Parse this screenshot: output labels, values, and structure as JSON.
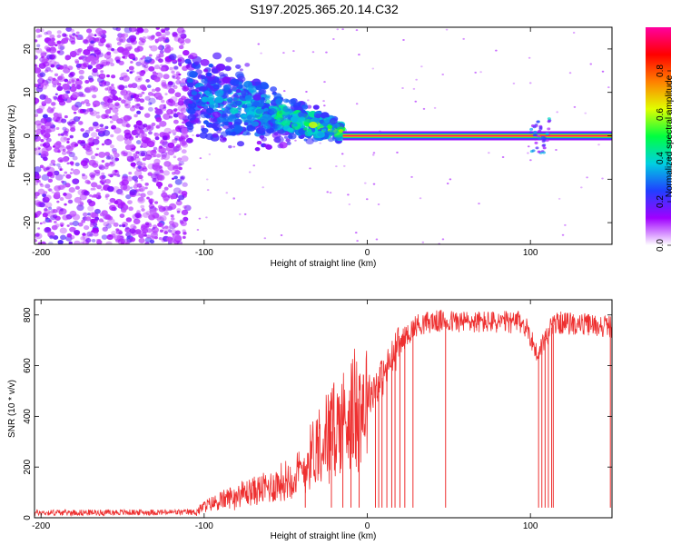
{
  "title": "S197.2025.365.20.14.C32",
  "chart_data": [
    {
      "type": "heatmap",
      "xlabel": "Height of straight line (km)",
      "ylabel": "Frequency (Hz)",
      "xlim": [
        -204,
        150
      ],
      "ylim": [
        -25,
        25
      ],
      "xticks": [
        -200,
        -100,
        0,
        100
      ],
      "yticks": [
        -20,
        -10,
        0,
        10,
        20
      ],
      "colorbar": {
        "label": "Normalized spectral amplitude",
        "range": [
          0.0,
          1.0
        ],
        "ticks": [
          0.0,
          0.2,
          0.4,
          0.6,
          0.8
        ],
        "tick_labels": [
          "0.0",
          "0.2",
          "0.4",
          "0.6",
          "0.8"
        ],
        "colors": [
          "#ffffff",
          "#a000ff",
          "#2040ff",
          "#00d0e0",
          "#00ff40",
          "#e0ff00",
          "#ff8000",
          "#ff0000",
          "#ff00a0"
        ]
      },
      "features": [
        {
          "name": "noise",
          "x_range": [
            -204,
            -110
          ],
          "freq_range": [
            -25,
            25
          ],
          "amplitude": 0.15
        },
        {
          "name": "transition",
          "x_range": [
            -110,
            -15
          ],
          "freq_center_start": 10,
          "freq_center_end": 1,
          "amplitude": 0.3
        },
        {
          "name": "tone",
          "x_range": [
            -15,
            150
          ],
          "freq": 0,
          "amplitude": 1.0
        }
      ]
    },
    {
      "type": "line",
      "xlabel": "Height of straight line (km)",
      "ylabel": "SNR (10 * v/v)",
      "xlim": [
        -204,
        150
      ],
      "ylim": [
        0,
        860
      ],
      "xticks": [
        -200,
        -100,
        0,
        100
      ],
      "yticks": [
        0,
        200,
        400,
        600,
        800
      ],
      "color": "#ee3030",
      "profile": [
        [
          -204,
          20
        ],
        [
          -105,
          22
        ],
        [
          -100,
          45
        ],
        [
          -80,
          90
        ],
        [
          -60,
          120
        ],
        [
          -40,
          180
        ],
        [
          -30,
          300
        ],
        [
          -20,
          350
        ],
        [
          -10,
          420
        ],
        [
          0,
          480
        ],
        [
          10,
          560
        ],
        [
          20,
          690
        ],
        [
          30,
          760
        ],
        [
          40,
          775
        ],
        [
          95,
          770
        ],
        [
          100,
          720
        ],
        [
          104,
          640
        ],
        [
          110,
          720
        ],
        [
          115,
          770
        ],
        [
          150,
          755
        ]
      ],
      "dropouts": [
        -38,
        -22,
        -15,
        -10,
        -5,
        5,
        7,
        9,
        12,
        15,
        17,
        20,
        23,
        28,
        48,
        105,
        107,
        109,
        111,
        113,
        114,
        149
      ]
    }
  ]
}
